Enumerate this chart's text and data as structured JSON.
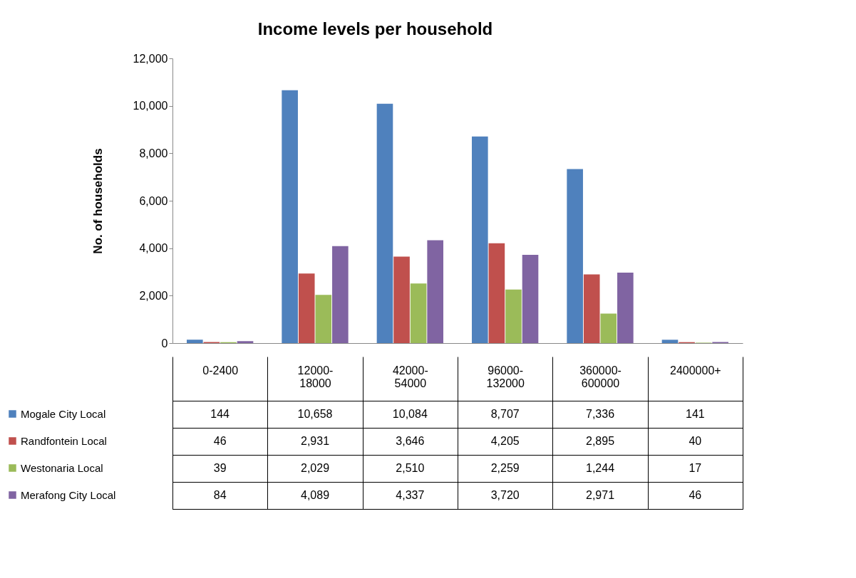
{
  "chart_data": {
    "type": "bar",
    "title": "Income levels per household",
    "ylabel": "No. of households",
    "categories": [
      "0-2400",
      "12000-18000",
      "42000-54000",
      "96000-132000",
      "360000-600000",
      "2400000+"
    ],
    "series": [
      {
        "name": "Mogale City Local",
        "color": "#4f81bd",
        "values": [
          144,
          10658,
          10084,
          8707,
          7336,
          141
        ],
        "value_labels": [
          "144",
          "10,658",
          "10,084",
          "8,707",
          "7,336",
          "141"
        ]
      },
      {
        "name": "Randfontein Local",
        "color": "#c0504d",
        "values": [
          46,
          2931,
          3646,
          4205,
          2895,
          40
        ],
        "value_labels": [
          "46",
          "2,931",
          "3,646",
          "4,205",
          "2,895",
          "40"
        ]
      },
      {
        "name": "Westonaria Local",
        "color": "#9bbb59",
        "values": [
          39,
          2029,
          2510,
          2259,
          1244,
          17
        ],
        "value_labels": [
          "39",
          "2,029",
          "2,510",
          "2,259",
          "1,244",
          "17"
        ]
      },
      {
        "name": "Merafong City Local",
        "color": "#8064a2",
        "values": [
          84,
          4089,
          4337,
          3720,
          2971,
          46
        ],
        "value_labels": [
          "84",
          "4,089",
          "4,337",
          "3,720",
          "2,971",
          "46"
        ]
      }
    ],
    "ylim": [
      0,
      12000
    ],
    "yticks": [
      0,
      {
        "value": 2000,
        "label": "2,000"
      },
      {
        "value": 4000,
        "label": "4,000"
      },
      {
        "value": 6000,
        "label": "6,000"
      },
      {
        "value": 8000,
        "label": "8,000"
      },
      {
        "value": 10000,
        "label": "10,000"
      },
      {
        "value": 12000,
        "label": "12,000"
      }
    ],
    "grid": false,
    "legend": "bottom left"
  }
}
